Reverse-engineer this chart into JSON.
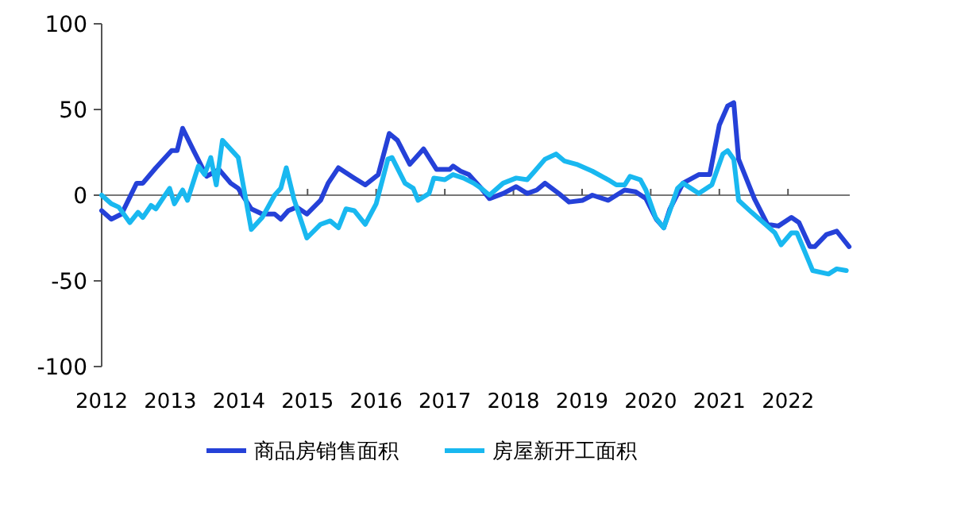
{
  "chart_data": {
    "type": "line",
    "xlim": [
      2012,
      2022.9
    ],
    "xticks": [
      2012,
      2013,
      2014,
      2015,
      2016,
      2017,
      2018,
      2019,
      2020,
      2021,
      2022
    ],
    "ylim": [
      -100,
      100
    ],
    "yticks": [
      -100,
      -50,
      0,
      50,
      100
    ],
    "legend": "bottom",
    "marker": "none",
    "line_style": "solid",
    "series": [
      {
        "name": "商品房销售面积",
        "color": "#2541d8",
        "x": [
          2012.0,
          2012.14,
          2012.29,
          2012.51,
          2012.6,
          2012.79,
          2013.02,
          2013.1,
          2013.18,
          2013.34,
          2013.53,
          2013.71,
          2013.88,
          2013.99,
          2014.18,
          2014.34,
          2014.52,
          2014.61,
          2014.72,
          2014.84,
          2014.99,
          2015.19,
          2015.3,
          2015.45,
          2015.68,
          2015.84,
          2016.03,
          2016.19,
          2016.31,
          2016.49,
          2016.69,
          2016.88,
          2017.07,
          2017.12,
          2017.23,
          2017.35,
          2017.53,
          2017.65,
          2017.85,
          2018.04,
          2018.2,
          2018.34,
          2018.46,
          2018.66,
          2018.81,
          2019.01,
          2019.15,
          2019.38,
          2019.62,
          2019.78,
          2019.93,
          2020.08,
          2020.19,
          2020.28,
          2020.47,
          2020.7,
          2020.86,
          2021.0,
          2021.12,
          2021.21,
          2021.28,
          2021.51,
          2021.7,
          2021.86,
          2022.05,
          2022.16,
          2022.32,
          2022.39,
          2022.56,
          2022.71,
          2022.79,
          2022.89
        ],
        "values": [
          -9,
          -14,
          -11,
          7,
          7,
          16,
          26,
          26,
          39,
          26,
          11,
          15,
          7,
          4,
          -8,
          -11,
          -11,
          -14,
          -9,
          -7,
          -11,
          -3,
          7,
          16,
          10,
          6,
          12,
          36,
          32,
          18,
          27,
          15,
          15,
          17,
          14,
          12,
          4,
          -2,
          1,
          5,
          1,
          3,
          7,
          1,
          -4,
          -3,
          0,
          -3,
          3,
          2,
          -2,
          -14,
          -19,
          -8,
          7,
          12,
          12,
          41,
          52,
          54,
          21,
          -2,
          -17,
          -18,
          -13,
          -16,
          -30,
          -30,
          -23,
          -21,
          -25,
          -30
        ]
      },
      {
        "name": "房屋新开工面积",
        "color": "#19b8f0",
        "x": [
          2012.0,
          2012.14,
          2012.25,
          2012.41,
          2012.53,
          2012.6,
          2012.72,
          2012.79,
          2012.99,
          2013.06,
          2013.18,
          2013.25,
          2013.41,
          2013.5,
          2013.59,
          2013.67,
          2013.76,
          2013.99,
          2014.18,
          2014.34,
          2014.52,
          2014.61,
          2014.69,
          2014.8,
          2014.99,
          2015.19,
          2015.33,
          2015.45,
          2015.56,
          2015.68,
          2015.84,
          2016.0,
          2016.17,
          2016.23,
          2016.42,
          2016.54,
          2016.61,
          2016.77,
          2016.84,
          2017.0,
          2017.12,
          2017.27,
          2017.42,
          2017.53,
          2017.65,
          2017.85,
          2018.04,
          2018.2,
          2018.31,
          2018.46,
          2018.62,
          2018.74,
          2018.92,
          2019.15,
          2019.38,
          2019.5,
          2019.62,
          2019.7,
          2019.85,
          2019.93,
          2020.07,
          2020.19,
          2020.28,
          2020.39,
          2020.47,
          2020.7,
          2020.89,
          2021.05,
          2021.12,
          2021.21,
          2021.28,
          2021.47,
          2021.67,
          2021.81,
          2021.9,
          2022.05,
          2022.13,
          2022.36,
          2022.59,
          2022.71,
          2022.85
        ],
        "values": [
          0,
          -5,
          -7,
          -16,
          -10,
          -13,
          -6,
          -8,
          4,
          -5,
          3,
          -3,
          17,
          12,
          22,
          6,
          32,
          22,
          -20,
          -13,
          0,
          4,
          16,
          -2,
          -25,
          -17,
          -15,
          -19,
          -8,
          -9,
          -17,
          -5,
          21,
          22,
          7,
          4,
          -3,
          1,
          10,
          9,
          12,
          10,
          7,
          4,
          0,
          7,
          10,
          9,
          14,
          21,
          24,
          20,
          18,
          14,
          9,
          6,
          6,
          11,
          9,
          3,
          -13,
          -19,
          -9,
          4,
          7,
          1,
          6,
          24,
          26,
          21,
          -3,
          -10,
          -17,
          -22,
          -29,
          -22,
          -22,
          -44,
          -46,
          -43,
          -44
        ]
      }
    ]
  }
}
